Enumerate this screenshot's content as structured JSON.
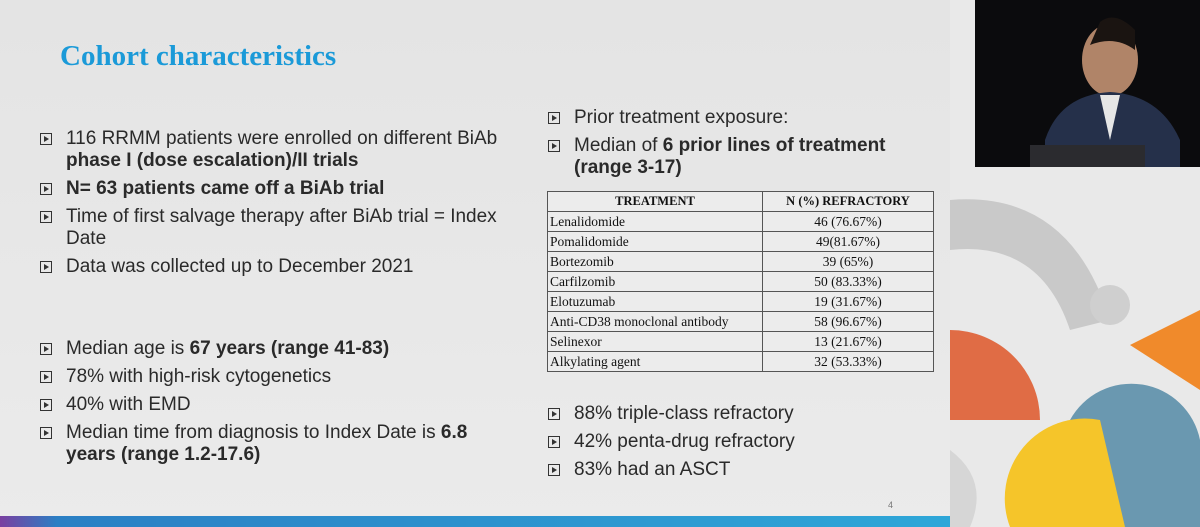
{
  "slide": {
    "title": "Cohort characteristics",
    "left_groups": [
      [
        [
          {
            "text": "116 RRMM patients were enrolled on different BiAb ",
            "bold": false
          },
          {
            "text": "phase I (dose escalation)/II trials",
            "bold": true
          }
        ],
        [
          {
            "text": "N= 63 patients came off a BiAb trial",
            "bold": true
          }
        ],
        [
          {
            "text": "Time of first salvage therapy after BiAb trial = Index Date",
            "bold": false
          }
        ],
        [
          {
            "text": "Data was collected up to December 2021",
            "bold": false
          }
        ]
      ],
      [
        [
          {
            "text": "Median age is ",
            "bold": false
          },
          {
            "text": "67 years (range 41-83)",
            "bold": true
          }
        ],
        [
          {
            "text": "78% with high-risk cytogenetics",
            "bold": false
          }
        ],
        [
          {
            "text": "40% with EMD",
            "bold": false
          }
        ],
        [
          {
            "text": "Median time from diagnosis to Index Date is ",
            "bold": false
          },
          {
            "text": "6.8 years (range 1.2-17.6)",
            "bold": true
          }
        ]
      ]
    ],
    "right_groups": [
      [
        [
          {
            "text": "Prior treatment exposure:",
            "bold": false
          }
        ],
        [
          {
            "text": "Median of ",
            "bold": false
          },
          {
            "text": "6 prior lines of treatment (range 3-17)",
            "bold": true
          }
        ]
      ],
      [
        [
          {
            "text": "88% triple-class refractory",
            "bold": false
          }
        ],
        [
          {
            "text": "42% penta-drug refractory",
            "bold": false
          }
        ],
        [
          {
            "text": "83% had an ASCT",
            "bold": false
          }
        ]
      ]
    ],
    "table": {
      "header": [
        "TREATMENT",
        "N (%) REFRACTORY"
      ],
      "rows": [
        [
          "Lenalidomide",
          "46 (76.67%)"
        ],
        [
          "Pomalidomide",
          "49(81.67%)"
        ],
        [
          "Bortezomib",
          "39 (65%)"
        ],
        [
          "Carfilzomib",
          "50 (83.33%)"
        ],
        [
          "Elotuzumab",
          "19 (31.67%)"
        ],
        [
          "Anti-CD38 monoclonal antibody",
          "58 (96.67%)"
        ],
        [
          "Selinexor",
          "13 (21.67%)"
        ],
        [
          "Alkylating agent",
          "32 (53.33%)"
        ]
      ]
    },
    "page_number": "4"
  }
}
